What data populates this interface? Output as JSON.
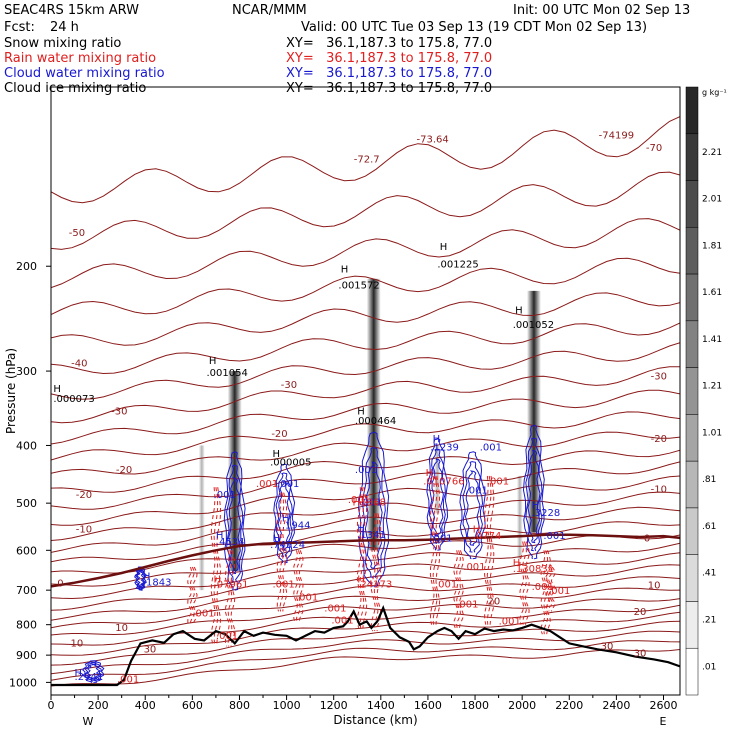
{
  "header": {
    "model": "SEAC4RS 15km ARW",
    "center": "NCAR/MMM",
    "init": "Init: 00 UTC Mon 02 Sep 13",
    "fcst_label": "Fcst:",
    "fcst_value": "24 h",
    "valid": "Valid: 00 UTC Tue 03 Sep 13 (19 CDT Mon 02 Sep 13)"
  },
  "fields": [
    {
      "name": "Snow mixing ratio",
      "xy": "XY=   36.1,187.3 to 175.8, 77.0",
      "color": "#000000"
    },
    {
      "name": "Rain water mixing ratio",
      "xy": "XY=   36.1,187.3 to 175.8, 77.0",
      "color": "#e02020"
    },
    {
      "name": "Cloud water mixing ratio",
      "xy": "XY=   36.1,187.3 to 175.8, 77.0",
      "color": "#1818d0"
    },
    {
      "name": "Cloud ice mixing ratio",
      "xy": "XY=   36.1,187.3 to 175.8, 77.0",
      "color": "#000000"
    }
  ],
  "colorbar": {
    "unit": "g kg⁻¹",
    "labels": [
      "2.21",
      "2.01",
      "1.81",
      "1.61",
      "1.41",
      "1.21",
      "1.01",
      ".81",
      ".61",
      ".41",
      ".21",
      ".01"
    ]
  },
  "direction": {
    "left": "W",
    "right": "E"
  },
  "chart_data": {
    "type": "cross-section",
    "xlabel": "Distance (km)",
    "ylabel": "Pressure (hPa)",
    "xlim": [
      0,
      2670
    ],
    "ylim": [
      1050,
      100
    ],
    "yscale": "log",
    "xticks": [
      0,
      200,
      400,
      600,
      800,
      1000,
      1200,
      1400,
      1600,
      1800,
      2000,
      2200,
      2400,
      2600
    ],
    "yticks": [
      200,
      300,
      400,
      500,
      600,
      700,
      800,
      900,
      1000
    ],
    "terrain": [
      [
        0,
        1010
      ],
      [
        280,
        1010
      ],
      [
        310,
        990
      ],
      [
        340,
        920
      ],
      [
        380,
        860
      ],
      [
        430,
        850
      ],
      [
        480,
        858
      ],
      [
        520,
        830
      ],
      [
        560,
        820
      ],
      [
        610,
        845
      ],
      [
        650,
        850
      ],
      [
        700,
        820
      ],
      [
        740,
        830
      ],
      [
        780,
        860
      ],
      [
        820,
        820
      ],
      [
        860,
        835
      ],
      [
        900,
        825
      ],
      [
        950,
        832
      ],
      [
        1000,
        835
      ],
      [
        1040,
        850
      ],
      [
        1080,
        835
      ],
      [
        1120,
        820
      ],
      [
        1160,
        825
      ],
      [
        1200,
        810
      ],
      [
        1240,
        805
      ],
      [
        1260,
        790
      ],
      [
        1285,
        760
      ],
      [
        1310,
        800
      ],
      [
        1340,
        790
      ],
      [
        1360,
        810
      ],
      [
        1385,
        790
      ],
      [
        1410,
        750
      ],
      [
        1440,
        810
      ],
      [
        1480,
        840
      ],
      [
        1520,
        855
      ],
      [
        1540,
        880
      ],
      [
        1565,
        870
      ],
      [
        1600,
        840
      ],
      [
        1640,
        820
      ],
      [
        1670,
        810
      ],
      [
        1700,
        820
      ],
      [
        1730,
        845
      ],
      [
        1760,
        820
      ],
      [
        1800,
        830
      ],
      [
        1840,
        812
      ],
      [
        1880,
        820
      ],
      [
        1920,
        815
      ],
      [
        1960,
        818
      ],
      [
        2000,
        810
      ],
      [
        2040,
        800
      ],
      [
        2080,
        810
      ],
      [
        2120,
        820
      ],
      [
        2160,
        840
      ],
      [
        2200,
        860
      ],
      [
        2260,
        870
      ],
      [
        2320,
        880
      ],
      [
        2400,
        890
      ],
      [
        2480,
        905
      ],
      [
        2560,
        915
      ],
      [
        2620,
        925
      ],
      [
        2670,
        940
      ]
    ],
    "freezing_level": [
      [
        0,
        690
      ],
      [
        100,
        680
      ],
      [
        200,
        668
      ],
      [
        300,
        655
      ],
      [
        400,
        640
      ],
      [
        500,
        625
      ],
      [
        600,
        612
      ],
      [
        700,
        600
      ],
      [
        800,
        590
      ],
      [
        900,
        585
      ],
      [
        1000,
        583
      ],
      [
        1100,
        582
      ],
      [
        1200,
        580
      ],
      [
        1300,
        578
      ],
      [
        1400,
        577
      ],
      [
        1500,
        577
      ],
      [
        1600,
        576
      ],
      [
        1700,
        574
      ],
      [
        1800,
        572
      ],
      [
        1900,
        570
      ],
      [
        2000,
        568
      ],
      [
        2100,
        565
      ],
      [
        2200,
        565
      ],
      [
        2300,
        566
      ],
      [
        2400,
        568
      ],
      [
        2500,
        570
      ],
      [
        2600,
        568
      ],
      [
        2670,
        572
      ]
    ],
    "isotherm_labels": [
      {
        "text": "-70",
        "x": 2560,
        "p": 128
      },
      {
        "text": "-72.7",
        "x": 1340,
        "p": 134
      },
      {
        "text": "-73.64",
        "x": 1620,
        "p": 124
      },
      {
        "text": "-74199",
        "x": 2400,
        "p": 122
      },
      {
        "text": "-50",
        "x": 110,
        "p": 178
      },
      {
        "text": "-40",
        "x": 120,
        "p": 295
      },
      {
        "text": "-30",
        "x": 2580,
        "p": 310
      },
      {
        "text": "-30",
        "x": 1010,
        "p": 320
      },
      {
        "text": "-30",
        "x": 290,
        "p": 355
      },
      {
        "text": "-20",
        "x": 2580,
        "p": 395
      },
      {
        "text": "-20",
        "x": 970,
        "p": 387
      },
      {
        "text": "-20",
        "x": 310,
        "p": 445
      },
      {
        "text": "-20",
        "x": 140,
        "p": 490
      },
      {
        "text": "-10",
        "x": 2580,
        "p": 480
      },
      {
        "text": "-10",
        "x": 140,
        "p": 560
      },
      {
        "text": "0",
        "x": 2530,
        "p": 580
      },
      {
        "text": "0",
        "x": 40,
        "p": 690
      },
      {
        "text": "10",
        "x": 2560,
        "p": 695
      },
      {
        "text": "10",
        "x": 300,
        "p": 820
      },
      {
        "text": "10",
        "x": 110,
        "p": 870
      },
      {
        "text": "20",
        "x": 2500,
        "p": 770
      },
      {
        "text": "20",
        "x": 1880,
        "p": 740
      },
      {
        "text": "30",
        "x": 2360,
        "p": 880
      },
      {
        "text": "30",
        "x": 2500,
        "p": 905
      },
      {
        "text": "30",
        "x": 420,
        "p": 890
      }
    ],
    "extremum_labels": [
      {
        "text": "H",
        "x": 10,
        "p": 325,
        "color": "black"
      },
      {
        "text": ".000073",
        "x": 10,
        "p": 338,
        "color": "black"
      },
      {
        "text": "H",
        "x": 670,
        "p": 292,
        "color": "black"
      },
      {
        "text": ".001054",
        "x": 660,
        "p": 306,
        "color": "black"
      },
      {
        "text": "H",
        "x": 1230,
        "p": 205,
        "color": "black"
      },
      {
        "text": ".001572",
        "x": 1220,
        "p": 218,
        "color": "black"
      },
      {
        "text": "H",
        "x": 1650,
        "p": 188,
        "color": "black"
      },
      {
        "text": ".001225",
        "x": 1640,
        "p": 201,
        "color": "black"
      },
      {
        "text": "H",
        "x": 1970,
        "p": 240,
        "color": "black"
      },
      {
        "text": ".001052",
        "x": 1960,
        "p": 254,
        "color": "black"
      },
      {
        "text": "H",
        "x": 1300,
        "p": 355,
        "color": "black"
      },
      {
        "text": ".000464",
        "x": 1290,
        "p": 368,
        "color": "black"
      },
      {
        "text": "H",
        "x": 940,
        "p": 418,
        "color": "black"
      },
      {
        "text": ".000005",
        "x": 930,
        "p": 432,
        "color": "black"
      },
      {
        "text": "H",
        "x": 390,
        "p": 672,
        "color": "blue"
      },
      {
        "text": ".1843",
        "x": 390,
        "p": 688,
        "color": "blue"
      },
      {
        "text": "H",
        "x": 700,
        "p": 573,
        "color": "blue"
      },
      {
        "text": ".4534",
        "x": 700,
        "p": 588,
        "color": "blue"
      },
      {
        "text": "H",
        "x": 980,
        "p": 537,
        "color": "blue"
      },
      {
        "text": ".1944",
        "x": 980,
        "p": 552,
        "color": "blue"
      },
      {
        "text": "H",
        "x": 940,
        "p": 580,
        "color": "blue"
      },
      {
        "text": ".74524",
        "x": 930,
        "p": 595,
        "color": "blue"
      },
      {
        "text": ".001",
        "x": 690,
        "p": 490,
        "color": "blue"
      },
      {
        "text": ".001",
        "x": 960,
        "p": 470,
        "color": "blue"
      },
      {
        "text": ".001",
        "x": 1290,
        "p": 445,
        "color": "blue"
      },
      {
        "text": ".001",
        "x": 1310,
        "p": 505,
        "color": "blue"
      },
      {
        "text": "H",
        "x": 1300,
        "p": 558,
        "color": "blue"
      },
      {
        "text": ".1341",
        "x": 1300,
        "p": 572,
        "color": "blue"
      },
      {
        "text": "H",
        "x": 1620,
        "p": 395,
        "color": "blue"
      },
      {
        "text": ".1239",
        "x": 1610,
        "p": 408,
        "color": "blue"
      },
      {
        "text": ".001",
        "x": 1820,
        "p": 408,
        "color": "blue"
      },
      {
        "text": ".001",
        "x": 1760,
        "p": 482,
        "color": "blue"
      },
      {
        "text": ".001",
        "x": 1610,
        "p": 580,
        "color": "blue"
      },
      {
        "text": "H",
        "x": 2040,
        "p": 510,
        "color": "blue"
      },
      {
        "text": ".3228",
        "x": 2040,
        "p": 525,
        "color": "blue"
      },
      {
        "text": ".001",
        "x": 2090,
        "p": 574,
        "color": "blue"
      },
      {
        "text": "H",
        "x": 100,
        "p": 975,
        "color": "blue"
      },
      {
        "text": ".2941",
        "x": 100,
        "p": 990,
        "color": "blue"
      },
      {
        "text": "H",
        "x": 690,
        "p": 680,
        "color": "red"
      },
      {
        "text": ".07961",
        "x": 690,
        "p": 693,
        "color": "red"
      },
      {
        "text": ".001",
        "x": 870,
        "p": 470,
        "color": "red"
      },
      {
        "text": ".001",
        "x": 940,
        "p": 693,
        "color": "red"
      },
      {
        "text": ".001",
        "x": 1040,
        "p": 728,
        "color": "red"
      },
      {
        "text": ".001",
        "x": 600,
        "p": 775,
        "color": "red"
      },
      {
        "text": ".001",
        "x": 700,
        "p": 845,
        "color": "red"
      },
      {
        "text": ".001",
        "x": 1260,
        "p": 500,
        "color": "red"
      },
      {
        "text": "H",
        "x": 1280,
        "p": 505,
        "color": "red"
      },
      {
        "text": ".1368",
        "x": 1300,
        "p": 505,
        "color": "red"
      },
      {
        "text": "H",
        "x": 1300,
        "p": 680,
        "color": "red"
      },
      {
        "text": ".24173",
        "x": 1300,
        "p": 693,
        "color": "red"
      },
      {
        "text": ".001",
        "x": 1160,
        "p": 760,
        "color": "red"
      },
      {
        "text": ".001",
        "x": 1190,
        "p": 797,
        "color": "red"
      },
      {
        "text": "H",
        "x": 1590,
        "p": 450,
        "color": "red"
      },
      {
        "text": ".010766",
        "x": 1580,
        "p": 465,
        "color": "red"
      },
      {
        "text": ".001",
        "x": 1630,
        "p": 693,
        "color": "red"
      },
      {
        "text": ".001",
        "x": 1720,
        "p": 748,
        "color": "red"
      },
      {
        "text": ".001",
        "x": 1750,
        "p": 647,
        "color": "red"
      },
      {
        "text": ".001",
        "x": 1850,
        "p": 465,
        "color": "red"
      },
      {
        "text": "H",
        "x": 1790,
        "p": 560,
        "color": "red"
      },
      {
        "text": ".0774",
        "x": 1790,
        "p": 574,
        "color": "red"
      },
      {
        "text": "H",
        "x": 1960,
        "p": 638,
        "color": "red"
      },
      {
        "text": ".130831",
        "x": 1960,
        "p": 652,
        "color": "red"
      },
      {
        "text": ".001",
        "x": 1900,
        "p": 800,
        "color": "red"
      },
      {
        "text": ".001",
        "x": 2040,
        "p": 700,
        "color": "red"
      },
      {
        "text": ".001",
        "x": 2110,
        "p": 710,
        "color": "red"
      },
      {
        "text": ".001",
        "x": 280,
        "p": 1000,
        "color": "red"
      }
    ]
  }
}
